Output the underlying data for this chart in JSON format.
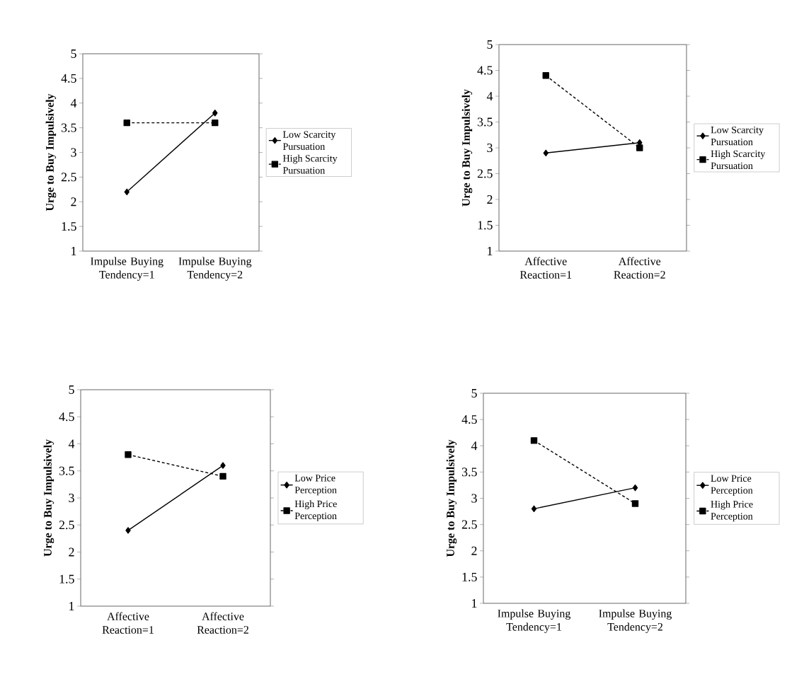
{
  "chart_data": [
    {
      "type": "line",
      "ylabel": "Urge to Buy  Impulsively",
      "categories": [
        "Impulse Buying Tendency=1",
        "Impulse Buying Tendency=2"
      ],
      "series": [
        {
          "name": "Low Scarcity Pursuation",
          "color": "#000000",
          "values": [
            2.2,
            3.8
          ],
          "marker": "diamond",
          "line_style": "solid"
        },
        {
          "name": "High Scarcity Pursuation",
          "color": "#000000",
          "values": [
            3.6,
            3.6
          ],
          "marker": "square",
          "line_style": "dashed"
        }
      ],
      "ylim": [
        1,
        5
      ],
      "yticks": [
        1,
        1.5,
        2,
        2.5,
        3,
        3.5,
        4,
        4.5,
        5
      ],
      "legend": "right"
    },
    {
      "type": "line",
      "ylabel": "Urge to Buy  Impulsively",
      "categories": [
        "Affective Reaction=1",
        "Affective Reaction=2"
      ],
      "series": [
        {
          "name": "Low Scarcity Pursuation",
          "color": "#000000",
          "values": [
            2.9,
            3.1
          ],
          "marker": "diamond",
          "line_style": "solid"
        },
        {
          "name": "High Scarcity Pursuation",
          "color": "#000000",
          "values": [
            4.4,
            3.0
          ],
          "marker": "square",
          "line_style": "dashed"
        }
      ],
      "ylim": [
        1,
        5
      ],
      "yticks": [
        1,
        1.5,
        2,
        2.5,
        3,
        3.5,
        4,
        4.5,
        5
      ],
      "legend": "right"
    },
    {
      "type": "line",
      "ylabel": "Urge to Buy  Impulsively",
      "categories": [
        "Affective Reaction=1",
        "Affective Reaction=2"
      ],
      "series": [
        {
          "name": "Low Price Perception",
          "color": "#000000",
          "values": [
            2.4,
            3.6
          ],
          "marker": "diamond",
          "line_style": "solid"
        },
        {
          "name": "High Price Perception",
          "color": "#000000",
          "values": [
            3.8,
            3.4
          ],
          "marker": "square",
          "line_style": "dashed"
        }
      ],
      "ylim": [
        1,
        5
      ],
      "yticks": [
        1,
        1.5,
        2,
        2.5,
        3,
        3.5,
        4,
        4.5,
        5
      ],
      "legend": "right"
    },
    {
      "type": "line",
      "ylabel": "Urge to Buy  Impulsively",
      "categories": [
        "Impulse Buying Tendency=1",
        "Impulse Buying Tendency=2"
      ],
      "series": [
        {
          "name": "Low Price Perception",
          "color": "#000000",
          "values": [
            2.8,
            3.2
          ],
          "marker": "diamond",
          "line_style": "solid"
        },
        {
          "name": "High Price Perception",
          "color": "#000000",
          "values": [
            4.1,
            2.9
          ],
          "marker": "square",
          "line_style": "dashed"
        }
      ],
      "ylim": [
        1,
        5
      ],
      "yticks": [
        1,
        1.5,
        2,
        2.5,
        3,
        3.5,
        4,
        4.5,
        5
      ],
      "legend": "right"
    }
  ]
}
